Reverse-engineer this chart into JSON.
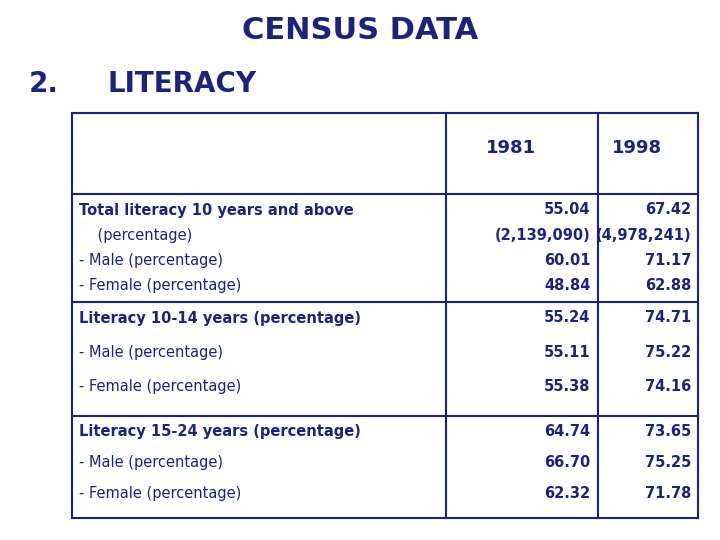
{
  "title": "CENSUS DATA",
  "subtitle_num": "2.",
  "subtitle_text": "LITERACY",
  "text_color": "#1a237e",
  "bg_color": "#ffffff",
  "title_fontsize": 22,
  "subtitle_fontsize": 20,
  "table_color": "#1a237e",
  "col_headers": [
    "",
    "1981",
    "1998"
  ],
  "rows": [
    {
      "label_lines": [
        "Total literacy 10 years and above",
        "    (percentage)",
        "- Male (percentage)",
        "- Female (percentage)"
      ],
      "val1_lines": [
        "55.04",
        "(2,139,090)",
        "60.01",
        "48.84"
      ],
      "val2_lines": [
        "67.42",
        "(4,978,241)",
        "71.17",
        "62.88"
      ]
    },
    {
      "label_lines": [
        "Literacy 10-14 years (percentage)",
        "- Male (percentage)",
        "- Female (percentage)"
      ],
      "val1_lines": [
        "55.24",
        "55.11",
        "55.38"
      ],
      "val2_lines": [
        "74.71",
        "75.22",
        "74.16"
      ]
    },
    {
      "label_lines": [
        "Literacy 15-24 years (percentage)",
        "- Male (percentage)",
        "- Female (percentage)"
      ],
      "val1_lines": [
        "64.74",
        "66.70",
        "62.32"
      ],
      "val2_lines": [
        "73.65",
        "75.25",
        "71.78"
      ]
    }
  ]
}
